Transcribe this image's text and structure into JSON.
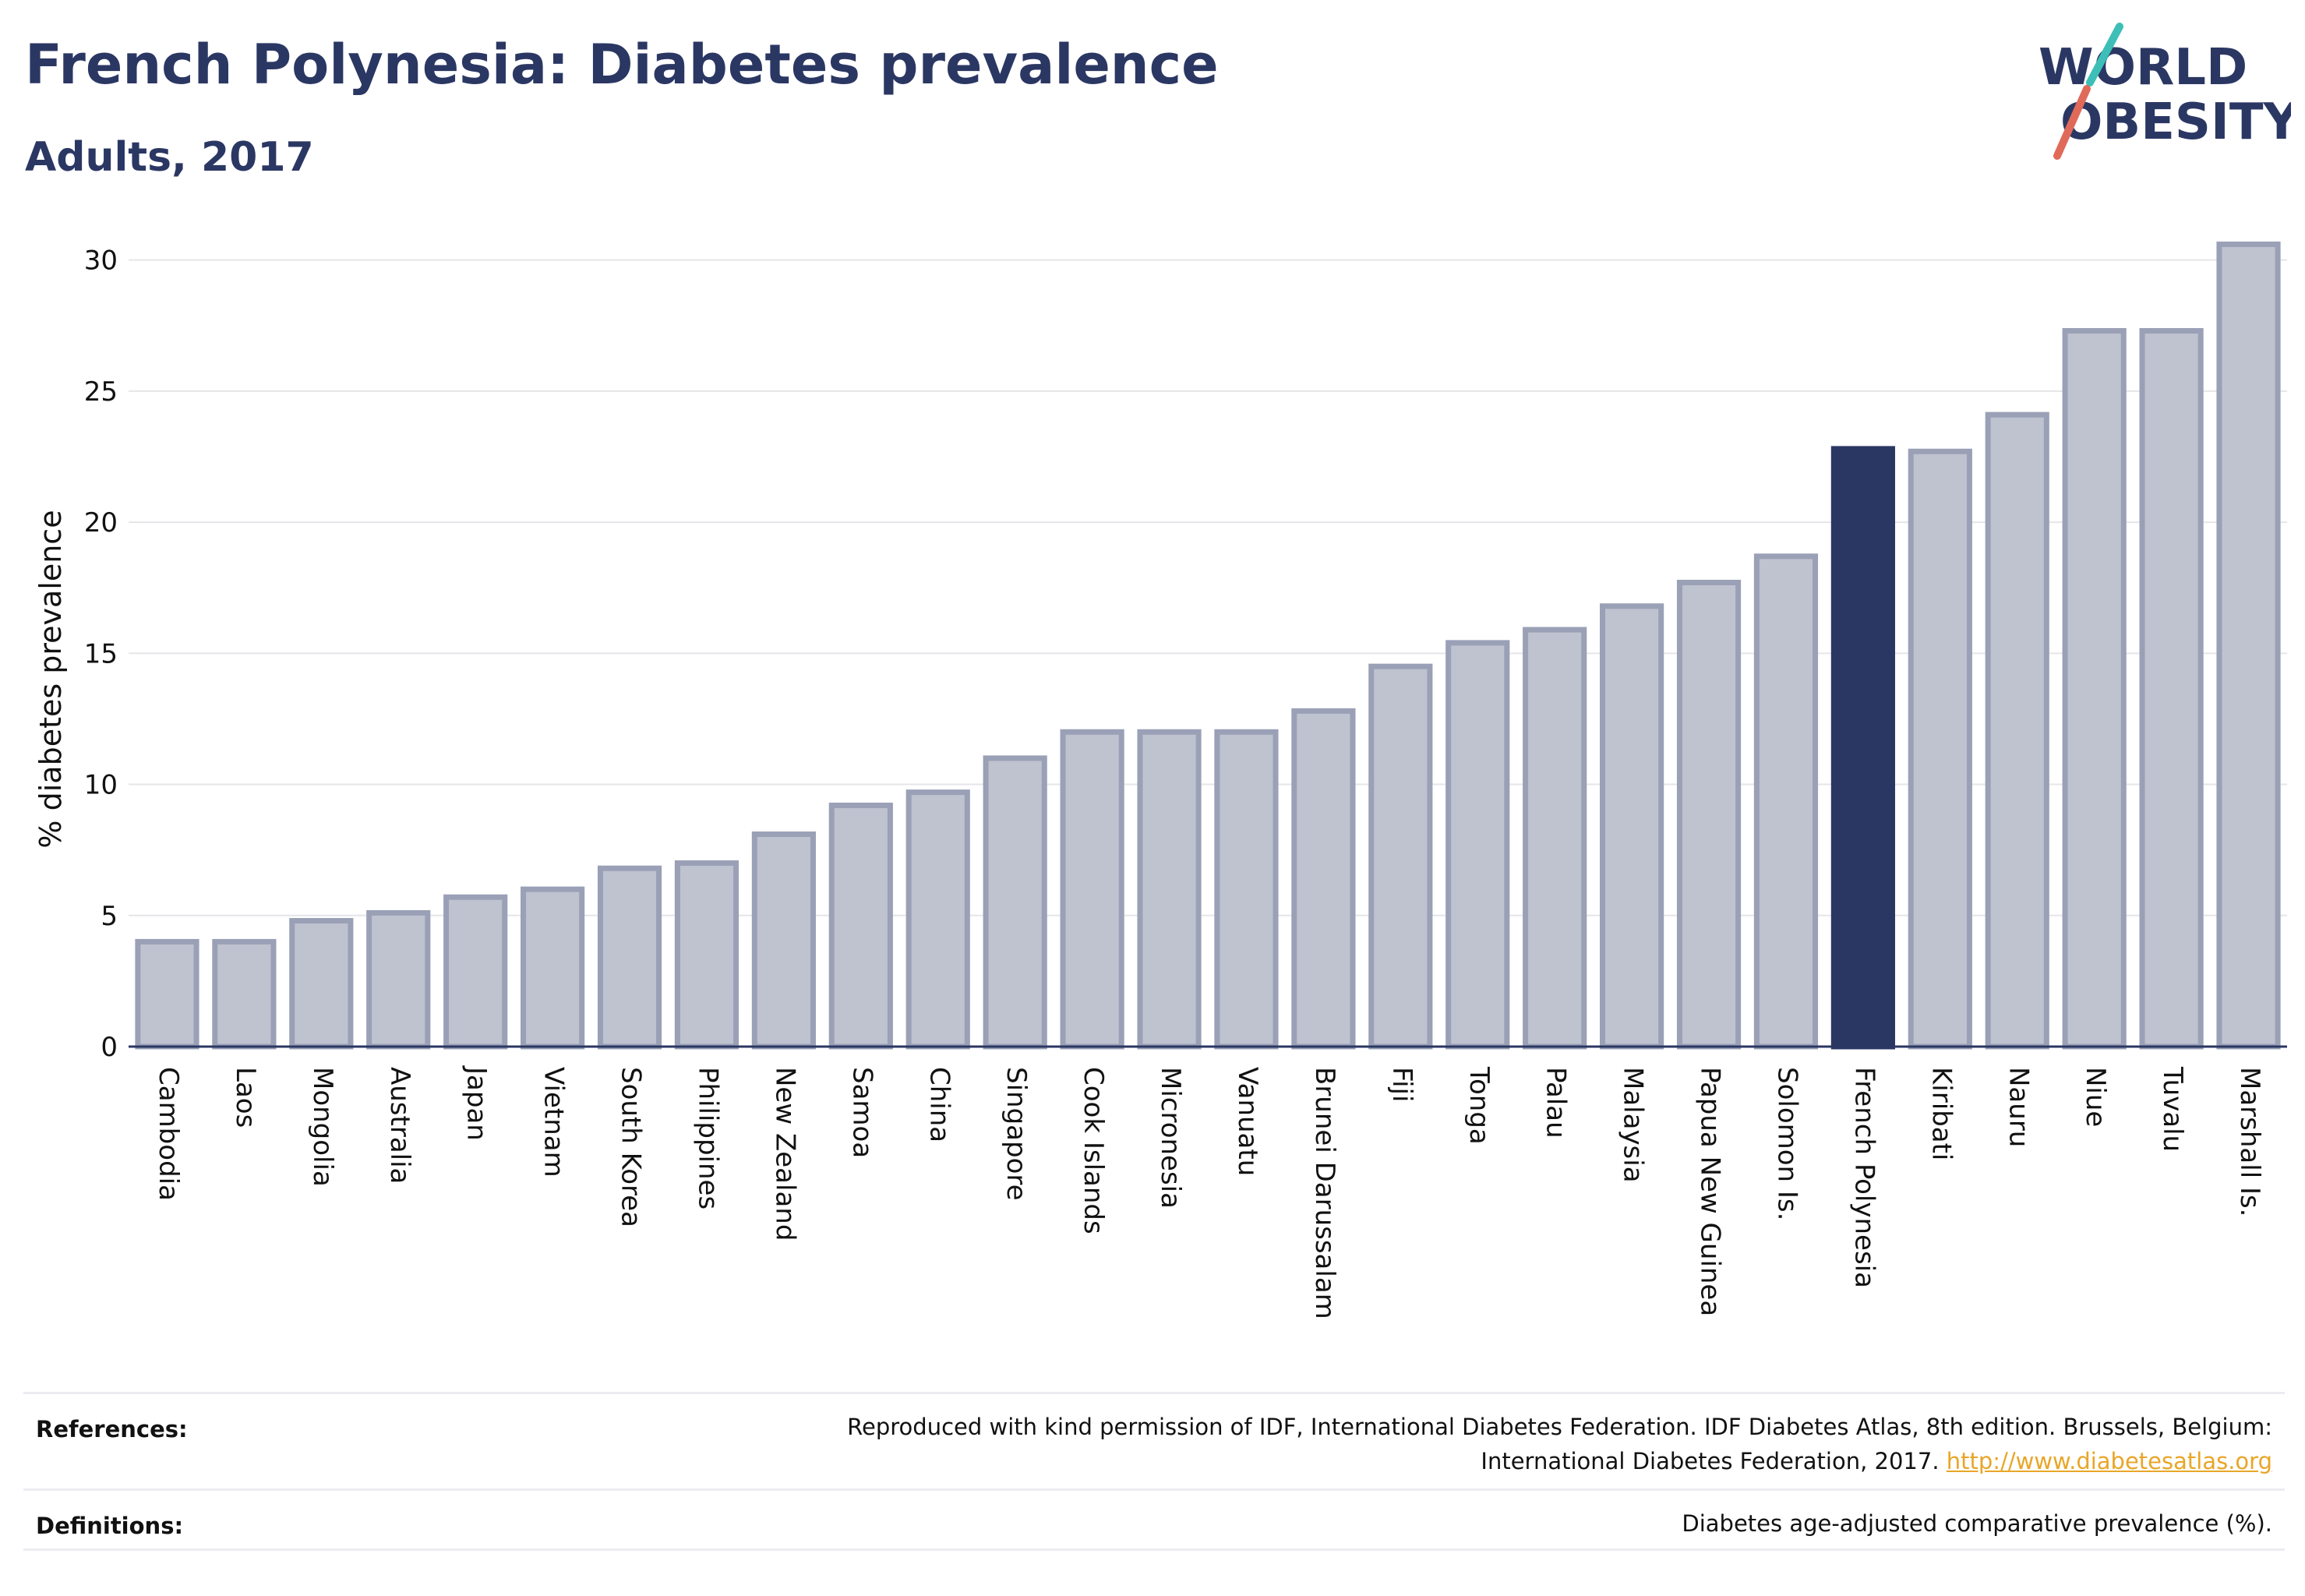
{
  "title": "French Polynesia: Diabetes prevalence",
  "subtitle": "Adults, 2017",
  "logo": {
    "line1": "WORLD",
    "line2": "OBESITY",
    "accent_colors": [
      "#3dbfb8",
      "#e06a5a"
    ]
  },
  "colors": {
    "primary": "#2b3763",
    "bar": "#bfc2cf",
    "bar_stroke": "#9aa0b6",
    "link": "#e8a628"
  },
  "chart_data": {
    "type": "bar",
    "ylabel": "% diabetes prevalence",
    "xlabel": "",
    "ylim": [
      0,
      31
    ],
    "yticks": [
      0,
      5,
      10,
      15,
      20,
      25,
      30
    ],
    "grid": true,
    "highlight": "French Polynesia",
    "categories": [
      "Cambodia",
      "Laos",
      "Mongolia",
      "Australia",
      "Japan",
      "Vietnam",
      "South Korea",
      "Philippines",
      "New Zealand",
      "Samoa",
      "China",
      "Singapore",
      "Cook Islands",
      "Micronesia",
      "Vanuatu",
      "Brunei Darussalam",
      "Fiji",
      "Tonga",
      "Palau",
      "Malaysia",
      "Papua New Guinea",
      "Solomon Is.",
      "French Polynesia",
      "Kiribati",
      "Nauru",
      "Niue",
      "Tuvalu",
      "Marshall Is."
    ],
    "values": [
      4.0,
      4.0,
      4.8,
      5.1,
      5.7,
      6.0,
      6.8,
      7.0,
      8.1,
      9.2,
      9.7,
      11.0,
      12.0,
      12.0,
      12.0,
      12.8,
      14.5,
      15.4,
      15.9,
      16.8,
      17.7,
      18.7,
      22.8,
      22.7,
      24.1,
      27.3,
      27.3,
      30.6
    ]
  },
  "footer": {
    "references_label": "References:",
    "references_line1": "Reproduced with kind permission of IDF, International Diabetes Federation. IDF Diabetes Atlas, 8th edition. Brussels, Belgium:",
    "references_line2": "International Diabetes Federation, 2017. ",
    "references_link": "http://www.diabetesatlas.org",
    "definitions_label": "Definitions:",
    "definitions_text": "Diabetes age-adjusted comparative prevalence (%)."
  }
}
